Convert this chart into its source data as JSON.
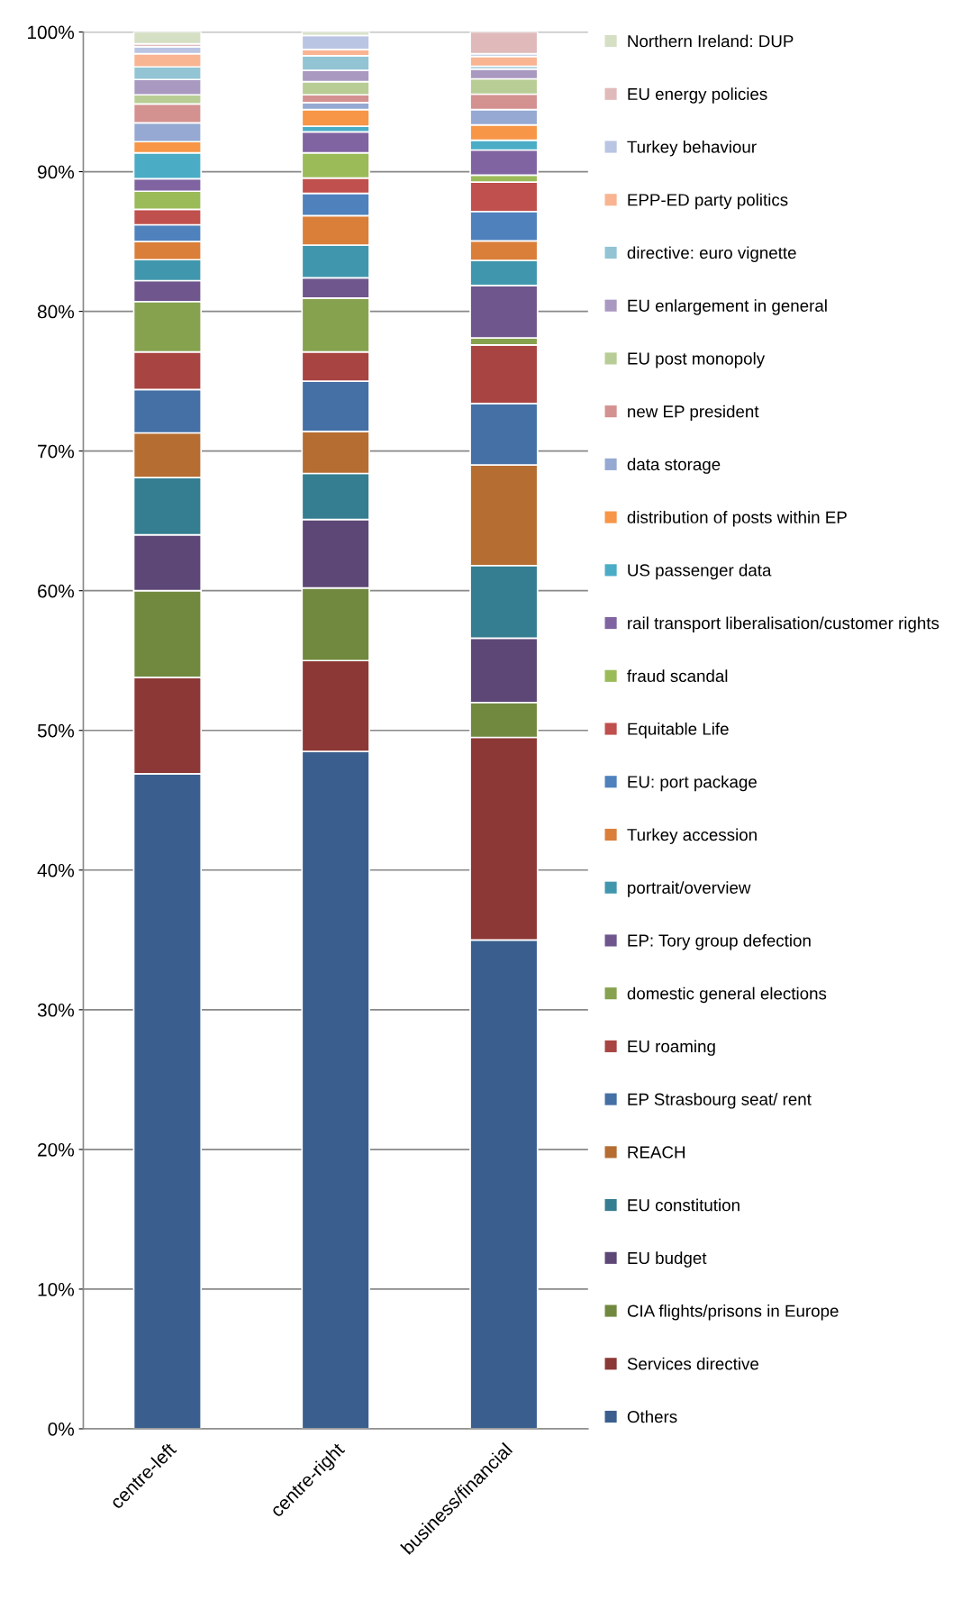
{
  "chart_data": {
    "type": "bar",
    "stacked": true,
    "categories": [
      "centre-left",
      "centre-right",
      "business/financial"
    ],
    "ylim": [
      0,
      100
    ],
    "yticks": [
      {
        "value": 0,
        "label": "0%"
      },
      {
        "value": 10,
        "label": "10%"
      },
      {
        "value": 20,
        "label": "20%"
      },
      {
        "value": 30,
        "label": "30%"
      },
      {
        "value": 40,
        "label": "40%"
      },
      {
        "value": 50,
        "label": "50%"
      },
      {
        "value": 60,
        "label": "60%"
      },
      {
        "value": 70,
        "label": "70%"
      },
      {
        "value": 80,
        "label": "80%"
      },
      {
        "value": 90,
        "label": "90%"
      },
      {
        "value": 100,
        "label": "100%"
      }
    ],
    "grid": "y",
    "legend": "right",
    "series": [
      {
        "name": "Others",
        "color": "#3a5f8f",
        "values": [
          46.9,
          48.5,
          35.0
        ]
      },
      {
        "name": "Services directive",
        "color": "#8c3836",
        "values": [
          6.9,
          6.5,
          14.5
        ]
      },
      {
        "name": "CIA flights/prisons in Europe",
        "color": "#71893f",
        "values": [
          6.2,
          5.2,
          2.5
        ]
      },
      {
        "name": "EU budget",
        "color": "#5d4776",
        "values": [
          4.0,
          4.9,
          4.6
        ]
      },
      {
        "name": "EU constitution",
        "color": "#357d91",
        "values": [
          4.1,
          3.3,
          5.2
        ]
      },
      {
        "name": "REACH",
        "color": "#b66d31",
        "values": [
          3.2,
          3.0,
          7.2
        ]
      },
      {
        "name": "EP Strasbourg seat/ rent",
        "color": "#4470a6",
        "values": [
          3.1,
          3.6,
          4.4
        ]
      },
      {
        "name": "EU roaming",
        "color": "#a84442",
        "values": [
          2.7,
          2.1,
          4.2
        ]
      },
      {
        "name": "domestic general elections",
        "color": "#87a24f",
        "values": [
          3.6,
          3.85,
          0.5
        ]
      },
      {
        "name": "EP: Tory group defection",
        "color": "#6f568d",
        "values": [
          1.5,
          1.45,
          3.75
        ]
      },
      {
        "name": "portrait/overview",
        "color": "#4097ad",
        "values": [
          1.5,
          2.35,
          1.8
        ]
      },
      {
        "name": "Turkey accession",
        "color": "#da7f3a",
        "values": [
          1.3,
          2.1,
          1.4
        ]
      },
      {
        "name": "EU: port package",
        "color": "#4f81bd",
        "values": [
          1.2,
          1.6,
          2.1
        ]
      },
      {
        "name": "Equitable Life",
        "color": "#c0504d",
        "values": [
          1.1,
          1.1,
          2.1
        ]
      },
      {
        "name": "fraud scandal",
        "color": "#9bbb59",
        "values": [
          1.3,
          1.8,
          0.5
        ]
      },
      {
        "name": "rail transport liberalisation/customer rights",
        "color": "#8064a2",
        "values": [
          0.9,
          1.5,
          1.8
        ]
      },
      {
        "name": "US passenger data",
        "color": "#4bacc6",
        "values": [
          1.85,
          0.4,
          0.7
        ]
      },
      {
        "name": "distribution of posts within EP",
        "color": "#f79646",
        "values": [
          0.8,
          1.2,
          1.1
        ]
      },
      {
        "name": "data storage",
        "color": "#95a9d2",
        "values": [
          1.35,
          0.5,
          1.1
        ]
      },
      {
        "name": "new EP president",
        "color": "#d39190",
        "values": [
          1.35,
          0.55,
          1.1
        ]
      },
      {
        "name": "EU post monopoly",
        "color": "#b8cd95",
        "values": [
          0.65,
          0.95,
          1.1
        ]
      },
      {
        "name": "EU enlargement in general",
        "color": "#a999c0",
        "values": [
          1.1,
          0.8,
          0.7
        ]
      },
      {
        "name": "directive: euro vignette",
        "color": "#92c4d4",
        "values": [
          0.9,
          1.05,
          0.2
        ]
      },
      {
        "name": "EPP-ED party politics",
        "color": "#f9b492",
        "values": [
          0.95,
          0.45,
          0.7
        ]
      },
      {
        "name": "Turkey behaviour",
        "color": "#b9c5e2",
        "values": [
          0.5,
          1.0,
          0.2
        ]
      },
      {
        "name": "EU energy policies",
        "color": "#e0baba",
        "values": [
          0.2,
          null,
          1.55
        ]
      },
      {
        "name": "Northern Ireland: DUP",
        "color": "#d4dfc4",
        "values": [
          0.85,
          0.25,
          null
        ]
      }
    ]
  }
}
